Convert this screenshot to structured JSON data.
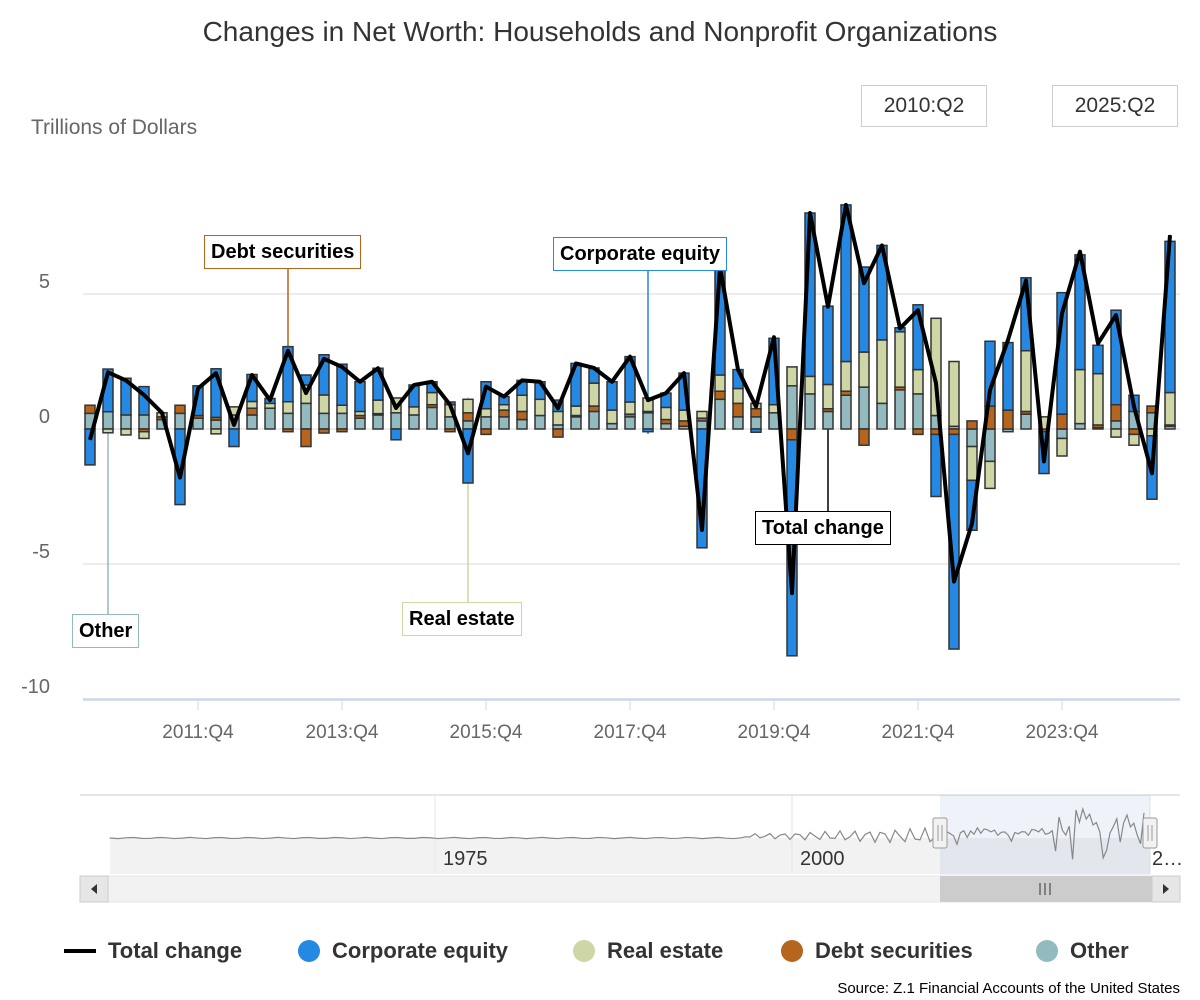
{
  "title": "Changes in Net Worth: Households and Nonprofit Organizations",
  "range": {
    "from": "2010:Q2",
    "to": "2025:Q2"
  },
  "source": "Source: Z.1 Financial Accounts of the United States",
  "colors": {
    "total": "#000000",
    "equity": "#2589e3",
    "real_estate": "#cdd6a4",
    "debt": "#b5651d",
    "other": "#93babf"
  },
  "annotations": {
    "debt": "Debt securities",
    "equity": "Corporate equity",
    "total": "Total change",
    "real_estate": "Real estate",
    "other": "Other"
  },
  "navigator": {
    "labels": [
      "1975",
      "2000",
      "2…"
    ]
  },
  "legend": [
    "Total change",
    "Corporate equity",
    "Real estate",
    "Debt securities",
    "Other"
  ],
  "chart_data": {
    "type": "bar",
    "stacked": true,
    "title": "Changes in Net Worth: Households and Nonprofit Organizations",
    "ylabel": "Trillions of Dollars",
    "ylim": [
      -10,
      9
    ],
    "yticks": [
      "5",
      "0",
      "-5",
      "-10"
    ],
    "ytick_values": [
      5,
      0,
      -5,
      -10
    ],
    "xticks": [
      "2011:Q4",
      "2013:Q4",
      "2015:Q4",
      "2017:Q4",
      "2019:Q4",
      "2021:Q4",
      "2023:Q4"
    ],
    "grid": true,
    "legend_position": "bottom",
    "first_quarter": "2010:Q2",
    "series": [
      {
        "name": "Other",
        "type": "bar",
        "values": [
          0.58,
          0.64,
          0.52,
          0.52,
          0.35,
          0.58,
          0.4,
          0.33,
          0.52,
          0.52,
          0.77,
          0.58,
          0.95,
          0.58,
          0.58,
          0.4,
          0.52,
          0.6,
          0.52,
          0.8,
          0.45,
          0.3,
          0.45,
          0.45,
          0.35,
          0.5,
          0.15,
          0.45,
          0.65,
          0.2,
          0.45,
          0.6,
          0.2,
          0.1,
          0.3,
          1.1,
          0.45,
          0.45,
          0.6,
          1.6,
          1.3,
          0.65,
          1.25,
          1.55,
          0.95,
          1.45,
          1.3,
          0.5,
          0.1,
          -0.65,
          -1.2,
          -0.1,
          0.55,
          0,
          -0.35,
          0.2,
          0.05,
          0.3,
          0.65,
          0.6,
          0.1
        ]
      },
      {
        "name": "Debt securities",
        "type": "bar",
        "values": [
          0.3,
          0,
          0,
          -0.1,
          0.1,
          0.3,
          0.1,
          0.1,
          0,
          0.25,
          0,
          -0.1,
          -0.65,
          -0.15,
          -0.1,
          0.1,
          0.05,
          0,
          0,
          0.1,
          -0.1,
          0.3,
          -0.2,
          0.25,
          0.3,
          0,
          -0.3,
          0.05,
          0.2,
          0,
          0.1,
          0.05,
          0.15,
          0.2,
          0.1,
          0.3,
          0.5,
          0.3,
          0,
          -0.4,
          0,
          0.1,
          0.15,
          -0.6,
          0,
          0.1,
          -0.2,
          -0.2,
          -0.2,
          0.3,
          0.85,
          0.7,
          0.1,
          -0.1,
          0.55,
          0,
          0.1,
          0.6,
          -0.2,
          0.25,
          0.05
        ]
      },
      {
        "name": "Real estate",
        "type": "bar",
        "values": [
          0,
          -0.14,
          -0.22,
          -0.25,
          0.15,
          0,
          0,
          -0.18,
          0.3,
          0.25,
          0.18,
          0.43,
          0.68,
          0.68,
          0.3,
          0.15,
          0.5,
          0.55,
          0.3,
          0.45,
          0.45,
          0.5,
          0.3,
          0.2,
          0.6,
          0.6,
          0.5,
          0.35,
          0.85,
          0.5,
          0.45,
          0.5,
          0.45,
          0.4,
          0.25,
          0.6,
          0.55,
          0.2,
          0.3,
          0.7,
          0.65,
          0.9,
          1.1,
          1.3,
          2.35,
          2.05,
          0.9,
          3.6,
          2.4,
          -1.25,
          -1.0,
          0,
          2.25,
          0.45,
          -0.65,
          2.0,
          1.9,
          -0.3,
          -0.4,
          -0.25,
          1.2
        ]
      },
      {
        "name": "Corporate equity",
        "type": "bar",
        "values": [
          -1.33,
          1.58,
          1.36,
          1.05,
          0,
          -2.8,
          1.1,
          1.8,
          -0.65,
          1.0,
          0.18,
          2.04,
          0.37,
          1.49,
          1.52,
          1.1,
          1.18,
          -0.4,
          0.81,
          0.4,
          0.1,
          -2.0,
          1.0,
          0.3,
          0.55,
          0.65,
          0.42,
          1.58,
          0.56,
          1.05,
          1.68,
          -0.1,
          0.53,
          1.37,
          -4.4,
          4.0,
          0.7,
          -0.12,
          2.46,
          -8.0,
          6.05,
          2.9,
          5.8,
          3.15,
          3.5,
          0.15,
          2.4,
          -2.3,
          -7.95,
          -1.85,
          2.4,
          2.5,
          2.7,
          -1.55,
          4.5,
          4.25,
          1.05,
          3.5,
          0.6,
          -2.35,
          5.6
        ]
      },
      {
        "name": "Total change",
        "type": "line",
        "values": [
          -0.4,
          2.1,
          1.8,
          1.26,
          0.6,
          -1.8,
          1.5,
          2.07,
          0.15,
          2.0,
          1.07,
          2.9,
          1.33,
          2.6,
          2.3,
          1.75,
          2.25,
          0.78,
          1.63,
          1.75,
          0.9,
          -0.9,
          1.57,
          1.2,
          1.8,
          1.75,
          0.77,
          2.43,
          2.26,
          1.75,
          2.68,
          1.07,
          1.33,
          2.07,
          -3.74,
          6.0,
          2.2,
          0.83,
          3.4,
          -6.08,
          8.0,
          4.53,
          8.3,
          5.4,
          6.8,
          3.73,
          4.4,
          1.7,
          -5.65,
          -3.5,
          1.44,
          3.3,
          5.5,
          -1.2,
          4.28,
          6.57,
          3.17,
          4.22,
          0.83,
          -1.64,
          7.18
        ]
      }
    ]
  }
}
